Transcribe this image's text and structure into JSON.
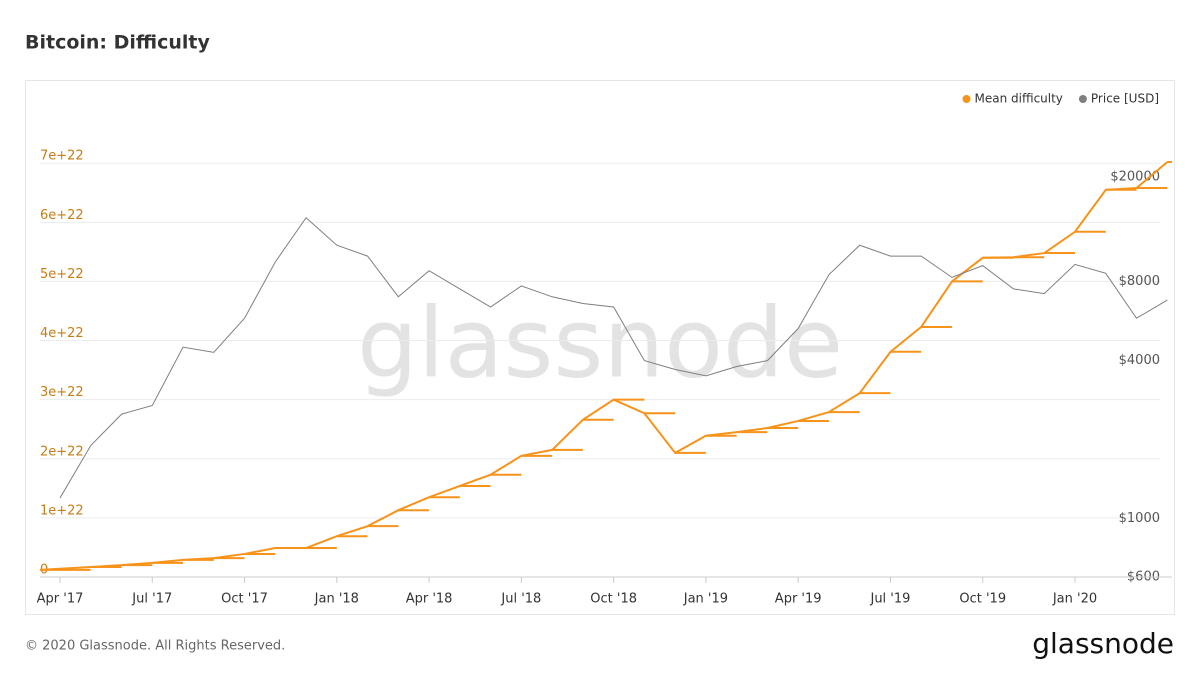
{
  "chart_data": {
    "type": "line",
    "title": "Bitcoin: Difficulty",
    "watermark": "glassnode",
    "footer": "© 2020 Glassnode. All Rights Reserved.",
    "logo": "glassnode",
    "legend": "top-right",
    "grid": true,
    "y2scale": "log",
    "x": [
      "Apr '17",
      null,
      null,
      "Jul '17",
      null,
      null,
      "Oct '17",
      null,
      null,
      "Jan '18",
      null,
      null,
      "Apr '18",
      null,
      null,
      "Jul '18",
      null,
      null,
      "Oct '18",
      null,
      null,
      "Jan '19",
      null,
      null,
      "Apr '19",
      null,
      null,
      "Jul '19",
      null,
      null,
      "Oct '19",
      null,
      null,
      "Jan '20",
      null,
      null,
      null
    ],
    "series": [
      {
        "name": "Mean difficulty",
        "color": "#f7931a",
        "step": true,
        "values": [
          1.2e+21,
          1.7e+21,
          2e+21,
          2.4e+21,
          2.9e+21,
          3.2e+21,
          3.9e+21,
          4.9e+21,
          4.9e+21,
          6.9e+21,
          8.6e+21,
          1.13e+22,
          1.35e+22,
          1.54e+22,
          1.73e+22,
          2.05e+22,
          2.15e+22,
          2.66e+22,
          3e+22,
          2.77e+22,
          2.1e+22,
          2.39e+22,
          2.45e+22,
          2.52e+22,
          2.64e+22,
          2.79e+22,
          3.11e+22,
          3.81e+22,
          4.23e+22,
          5e+22,
          5.4e+22,
          5.41e+22,
          5.48e+22,
          5.84e+22,
          6.55e+22,
          6.58e+22,
          7.02e+22
        ]
      },
      {
        "name": "Price [USD]",
        "color": "#7f7f7f",
        "axis": "y2",
        "values": [
          1200,
          1900,
          2500,
          2700,
          4500,
          4300,
          5800,
          9500,
          14000,
          11000,
          10000,
          7000,
          8800,
          7500,
          6400,
          7700,
          7000,
          6600,
          6400,
          4000,
          3700,
          3500,
          3800,
          4000,
          5300,
          8500,
          11000,
          10000,
          10000,
          8300,
          9200,
          7500,
          7200,
          9300,
          8600,
          5800,
          6800
        ]
      }
    ],
    "ylim": [
      0,
      7.9e+22
    ],
    "yticks": [
      0,
      {
        "value": 1e+22,
        "label": "1e+22"
      },
      {
        "value": 2e+22,
        "label": "2e+22"
      },
      {
        "value": 3e+22,
        "label": "3e+22"
      },
      {
        "value": 4e+22,
        "label": "4e+22"
      },
      {
        "value": 5e+22,
        "label": "5e+22"
      },
      {
        "value": 6e+22,
        "label": "6e+22"
      },
      {
        "value": 7e+22,
        "label": "7e+22"
      }
    ],
    "y2lim": [
      600,
      36000
    ],
    "y2ticks": [
      {
        "value": 600,
        "label": "$600"
      },
      {
        "value": 1000,
        "label": "$1000"
      },
      {
        "value": 4000,
        "label": "$4000"
      },
      {
        "value": 8000,
        "label": "$8000"
      },
      {
        "value": 20000,
        "label": "$20000"
      }
    ]
  }
}
